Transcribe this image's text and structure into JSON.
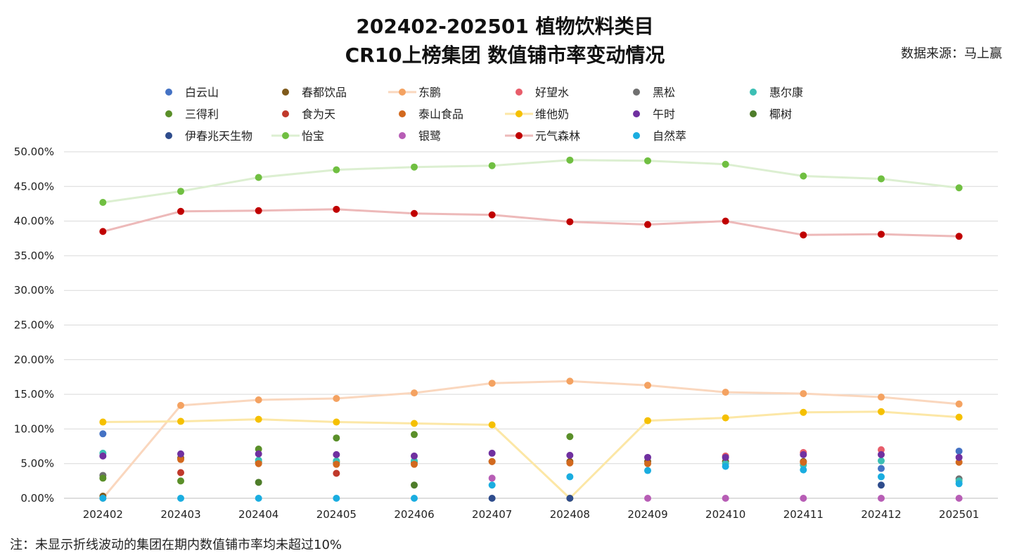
{
  "chart_data": {
    "type": "line",
    "title": "202402-202501 植物饮料类目",
    "subtitle": "CR10上榜集团 数值铺市率变动情况",
    "source": "数据来源：马上赢",
    "note": "注：未显示折线波动的集团在期内数值铺市率均未超过10%",
    "x": [
      "202402",
      "202403",
      "202404",
      "202405",
      "202406",
      "202407",
      "202408",
      "202409",
      "202410",
      "202411",
      "202412",
      "202501"
    ],
    "ylim": [
      0,
      50
    ],
    "yticks": [
      0,
      5,
      10,
      15,
      20,
      25,
      30,
      35,
      40,
      45,
      50
    ],
    "ytick_labels": [
      "0.00%",
      "5.00%",
      "10.00%",
      "15.00%",
      "20.00%",
      "25.00%",
      "30.00%",
      "35.00%",
      "40.00%",
      "45.00%",
      "50.00%"
    ],
    "grid": true,
    "legend_position": "top",
    "series": [
      {
        "name": "白云山",
        "color": "#4472C4",
        "line": false,
        "values": [
          9.3,
          null,
          null,
          null,
          null,
          null,
          null,
          null,
          null,
          null,
          4.3,
          6.8
        ]
      },
      {
        "name": "春都饮品",
        "color": "#7F5A1C",
        "line": false,
        "values": [
          0.3,
          5.8,
          5.2,
          5.2,
          5.2,
          5.3,
          5.3,
          5.3,
          5.3,
          5.3,
          null,
          null
        ]
      },
      {
        "name": "东鹏",
        "color": "#F4A261",
        "line": true,
        "line_color": "#FAD7BE",
        "values": [
          0.0,
          13.4,
          14.2,
          14.4,
          15.2,
          16.6,
          16.9,
          16.3,
          15.3,
          15.1,
          14.6,
          13.6
        ]
      },
      {
        "name": "好望水",
        "color": "#E85D6A",
        "line": false,
        "values": [
          null,
          null,
          null,
          null,
          null,
          null,
          null,
          null,
          6.1,
          6.6,
          7.0,
          null
        ]
      },
      {
        "name": "黑松",
        "color": "#707070",
        "line": false,
        "values": [
          3.3,
          null,
          null,
          null,
          null,
          null,
          null,
          null,
          null,
          null,
          null,
          2.8
        ]
      },
      {
        "name": "惠尔康",
        "color": "#3CBFB4",
        "line": false,
        "values": [
          6.5,
          null,
          5.5,
          5.4,
          5.4,
          null,
          null,
          null,
          5.0,
          4.8,
          5.4,
          2.5
        ]
      },
      {
        "name": "三得利",
        "color": "#5A8F29",
        "line": false,
        "values": [
          2.9,
          2.5,
          7.1,
          8.7,
          9.2,
          null,
          8.9,
          null,
          null,
          null,
          null,
          null
        ]
      },
      {
        "name": "食为天",
        "color": "#C0392B",
        "line": false,
        "values": [
          null,
          3.7,
          null,
          3.6,
          null,
          null,
          null,
          null,
          null,
          null,
          null,
          null
        ]
      },
      {
        "name": "泰山食品",
        "color": "#D2691E",
        "line": false,
        "values": [
          null,
          5.6,
          5.0,
          4.9,
          4.9,
          5.3,
          5.1,
          5.0,
          null,
          5.2,
          null,
          5.2
        ]
      },
      {
        "name": "维他奶",
        "color": "#F5C000",
        "line": true,
        "line_color": "#FCE7A6",
        "values": [
          11.0,
          11.1,
          11.4,
          11.0,
          10.8,
          10.6,
          0.0,
          11.2,
          11.6,
          12.4,
          12.5,
          11.7
        ]
      },
      {
        "name": "午时",
        "color": "#7030A0",
        "line": false,
        "values": [
          6.1,
          6.4,
          6.4,
          6.3,
          6.1,
          6.5,
          6.2,
          5.9,
          5.9,
          6.3,
          6.3,
          5.9
        ]
      },
      {
        "name": "椰树",
        "color": "#4E7D2A",
        "line": false,
        "values": [
          null,
          null,
          2.3,
          null,
          1.9,
          null,
          null,
          null,
          null,
          null,
          null,
          null
        ]
      },
      {
        "name": "伊春兆天生物",
        "color": "#2E4C8C",
        "line": false,
        "values": [
          null,
          null,
          null,
          null,
          null,
          0.0,
          0.0,
          null,
          null,
          null,
          1.9,
          null
        ]
      },
      {
        "name": "怡宝",
        "color": "#70BF41",
        "line": true,
        "line_color": "#DCEFD1",
        "values": [
          42.7,
          44.3,
          46.3,
          47.4,
          47.8,
          48.0,
          48.8,
          48.7,
          48.2,
          46.5,
          46.1,
          44.8
        ]
      },
      {
        "name": "银鹭",
        "color": "#B75DB5",
        "line": false,
        "values": [
          null,
          null,
          null,
          null,
          null,
          2.9,
          null,
          0.0,
          0.0,
          0.0,
          0.0,
          0.0
        ]
      },
      {
        "name": "元气森林",
        "color": "#C00000",
        "line": true,
        "line_color": "#EDB9B9",
        "values": [
          38.5,
          41.4,
          41.5,
          41.7,
          41.1,
          40.9,
          39.9,
          39.5,
          40.0,
          38.0,
          38.1,
          37.8
        ]
      },
      {
        "name": "自然萃",
        "color": "#1AADE0",
        "line": false,
        "values": [
          0.0,
          0.0,
          0.0,
          0.0,
          0.0,
          1.9,
          3.1,
          4.0,
          4.6,
          4.1,
          3.1,
          2.1
        ]
      }
    ]
  }
}
